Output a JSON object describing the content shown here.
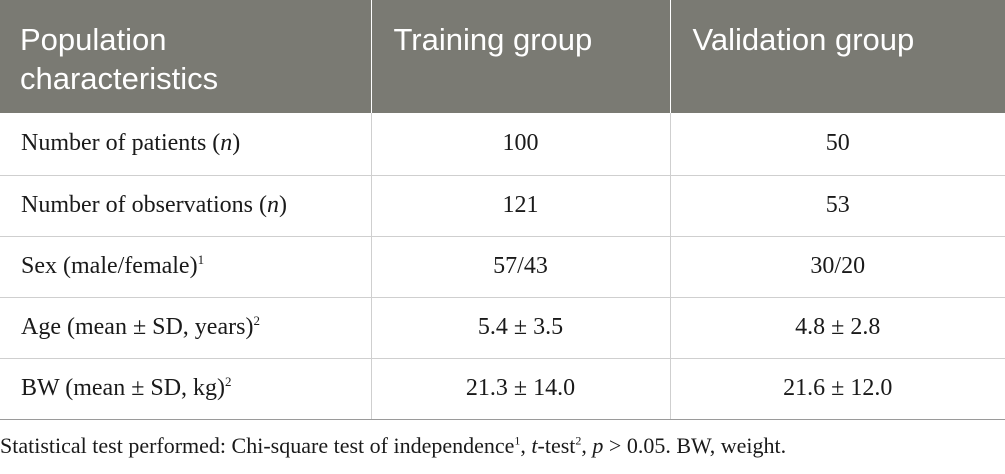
{
  "header": {
    "col1_line1": "Population",
    "col1_line2": "characteristics",
    "col2": "Training group",
    "col3": "Validation group"
  },
  "rows": [
    {
      "label_pre": "Number of patients (",
      "label_var": "n",
      "label_post": ")",
      "sup": "",
      "training": "100",
      "validation": "50"
    },
    {
      "label_pre": "Number of observations (",
      "label_var": "n",
      "label_post": ")",
      "sup": "",
      "training": "121",
      "validation": "53"
    },
    {
      "label_pre": "Sex (male/female)",
      "label_var": "",
      "label_post": "",
      "sup": "1",
      "training": "57/43",
      "validation": "30/20"
    },
    {
      "label_pre": "Age (mean ± SD, years)",
      "label_var": "",
      "label_post": "",
      "sup": "2",
      "training": "5.4 ± 3.5",
      "validation": "4.8 ± 2.8"
    },
    {
      "label_pre": "BW (mean ± SD, kg)",
      "label_var": "",
      "label_post": "",
      "sup": "2",
      "training": "21.3 ± 14.0",
      "validation": "21.6 ± 12.0"
    }
  ],
  "footnote": {
    "part1": "Statistical test performed: Chi-square test of independence",
    "sup1": "1",
    "part2": ", ",
    "t_var": "t",
    "part3": "-test",
    "sup2": "2",
    "part4": ", ",
    "p_var": "p",
    "part5": " > 0.05. BW, weight."
  }
}
